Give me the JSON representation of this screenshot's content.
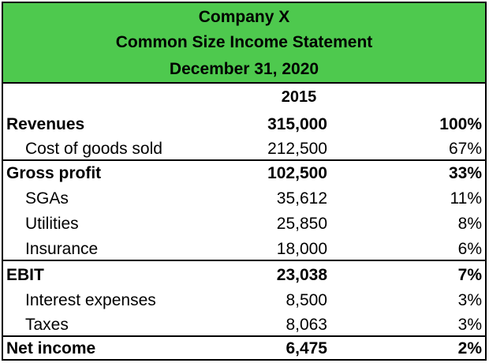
{
  "header": {
    "company": "Company X",
    "statement": "Common Size Income Statement",
    "date": "December 31, 2020"
  },
  "column_year": "2015",
  "rows": [
    {
      "label": "Revenues",
      "amount": "315,000",
      "percent": "100%",
      "bold": true,
      "indent": false
    },
    {
      "label": "Cost of goods sold",
      "amount": "212,500",
      "percent": "67%",
      "bold": false,
      "indent": true
    },
    {
      "label": "Gross profit",
      "amount": "102,500",
      "percent": "33%",
      "bold": true,
      "indent": false
    },
    {
      "label": "SGAs",
      "amount": "35,612",
      "percent": "11%",
      "bold": false,
      "indent": true
    },
    {
      "label": "Utilities",
      "amount": "25,850",
      "percent": "8%",
      "bold": false,
      "indent": true
    },
    {
      "label": "Insurance",
      "amount": "18,000",
      "percent": "6%",
      "bold": false,
      "indent": true
    },
    {
      "label": "EBIT",
      "amount": "23,038",
      "percent": "7%",
      "bold": true,
      "indent": false
    },
    {
      "label": "Interest expenses",
      "amount": "8,500",
      "percent": "3%",
      "bold": false,
      "indent": true
    },
    {
      "label": "Taxes",
      "amount": "8,063",
      "percent": "3%",
      "bold": false,
      "indent": true
    },
    {
      "label": "Net income",
      "amount": "6,475",
      "percent": "2%",
      "bold": true,
      "indent": false
    }
  ],
  "colors": {
    "header_bg": "#4ec94e",
    "border": "#000000"
  }
}
